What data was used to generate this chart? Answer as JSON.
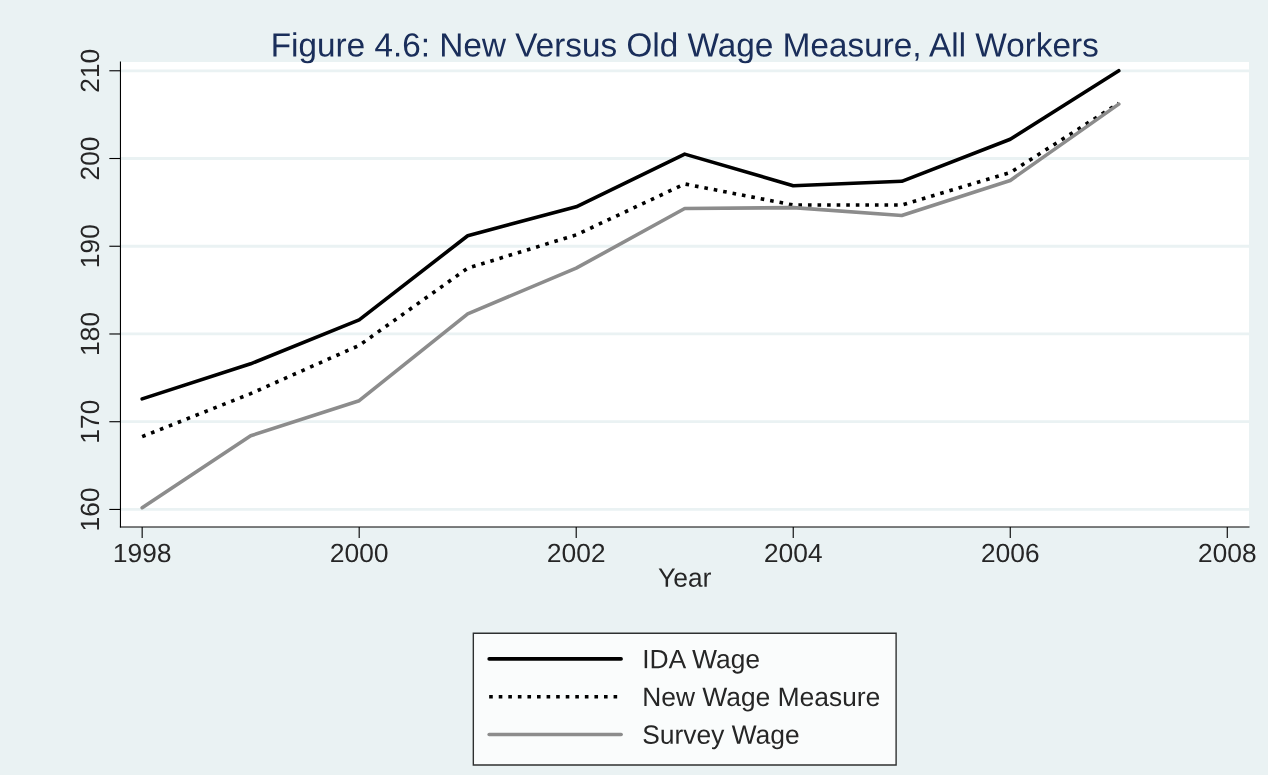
{
  "chart_data": {
    "type": "line",
    "title": "Figure 4.6: New Versus Old Wage Measure, All Workers",
    "xlabel": "Year",
    "x": [
      1998,
      1999,
      2000,
      2001,
      2002,
      2003,
      2004,
      2005,
      2006,
      2007
    ],
    "series": [
      {
        "name": "IDA Wage",
        "color": "#000000",
        "line_style": "solid",
        "values": [
          172.6,
          176.6,
          181.6,
          191.2,
          194.5,
          200.5,
          196.9,
          197.4,
          202.2,
          210.0
        ]
      },
      {
        "name": "New Wage Measure",
        "color": "#000000",
        "line_style": "dotted",
        "values": [
          168.3,
          173.2,
          178.7,
          187.5,
          191.3,
          197.1,
          194.7,
          194.7,
          198.4,
          206.3
        ]
      },
      {
        "name": "Survey Wage",
        "color": "#8c8c8c",
        "line_style": "solid",
        "values": [
          160.2,
          168.4,
          172.4,
          182.3,
          187.5,
          194.3,
          194.4,
          193.5,
          197.5,
          206.2
        ]
      }
    ],
    "xlim": [
      1997.8,
      2008.2
    ],
    "ylim": [
      158,
      211
    ],
    "xticks": [
      1998,
      2000,
      2002,
      2004,
      2006,
      2008
    ],
    "yticks": [
      160,
      170,
      180,
      190,
      200,
      210
    ],
    "grid": "y",
    "legend": "bottom",
    "marker": "none"
  }
}
